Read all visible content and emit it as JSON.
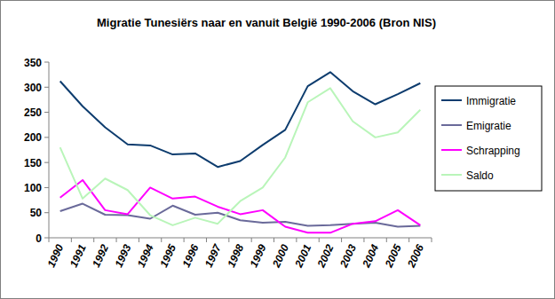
{
  "chart_data": {
    "type": "line",
    "title": "Migratie Tunesiërs naar en vanuit België 1990-2006 (Bron NIS)",
    "categories": [
      "1990",
      "1991",
      "1992",
      "1993",
      "1994",
      "1995",
      "1996",
      "1997",
      "1998",
      "1999",
      "2000",
      "2001",
      "2002",
      "2003",
      "2004",
      "2005",
      "2006"
    ],
    "series": [
      {
        "name": "Immigratie",
        "color": "#0d3c6e",
        "values": [
          312,
          262,
          220,
          186,
          184,
          166,
          168,
          141,
          153,
          185,
          215,
          302,
          330,
          292,
          266,
          286,
          308
        ]
      },
      {
        "name": "Emigratie",
        "color": "#6a6a9a",
        "values": [
          53,
          68,
          46,
          45,
          38,
          64,
          46,
          50,
          35,
          30,
          32,
          24,
          25,
          28,
          30,
          22,
          24
        ]
      },
      {
        "name": "Schrapping",
        "color": "#ff00ff",
        "values": [
          80,
          115,
          55,
          47,
          100,
          78,
          82,
          62,
          47,
          55,
          22,
          10,
          10,
          28,
          33,
          55,
          25
        ]
      },
      {
        "name": "Saldo",
        "color": "#b9f5b9",
        "values": [
          180,
          78,
          118,
          95,
          45,
          25,
          40,
          28,
          73,
          100,
          160,
          270,
          298,
          232,
          200,
          210,
          255
        ]
      }
    ],
    "ylim": [
      0,
      350
    ],
    "yticks": [
      0,
      50,
      100,
      150,
      200,
      250,
      300,
      350
    ],
    "grid": false,
    "legend": "right"
  }
}
